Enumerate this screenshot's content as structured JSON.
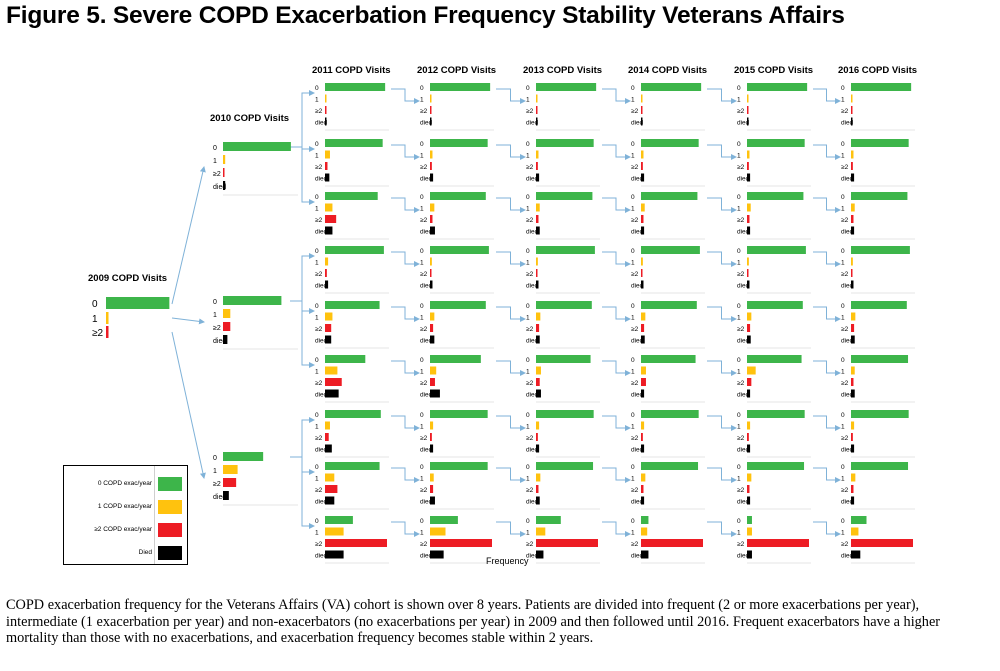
{
  "title": "Figure 5. Severe COPD Exacerbation Frequency Stability Veterans Affairs",
  "caption": "COPD exacerbation frequency for the Veterans Affairs (VA)  cohort is shown over 8 years.  Patients are divided into frequent (2 or more exacerbations per year), intermediate (1 exacerbation per year) and non-exacerbators (no exacerbations per year) in 2009 and then followed until 2016.  Frequent exacerbators have a higher mortality than those with no exacerbations, and exacerbation frequency becomes stable within 2 years.",
  "colors": {
    "zero": "#3db54a",
    "one": "#ffc20e",
    "two": "#ed1c24",
    "died": "#000000",
    "arrow": "#7fb2d8"
  },
  "legend": [
    {
      "label": "0 COPD exac/year",
      "color": "#3db54a"
    },
    {
      "label": "1 COPD exac/year",
      "color": "#ffc20e"
    },
    {
      "label": "≥2 COPD exac/year",
      "color": "#ed1c24"
    },
    {
      "label": "Died",
      "color": "#000000"
    }
  ],
  "chart_data": {
    "type": "bar",
    "orientation": "horizontal",
    "xlabel": "Frequency",
    "categories": [
      "0",
      "1",
      "≥2",
      "died"
    ],
    "year_labels": [
      "2009 COPD Visits",
      "2010 COPD Visits",
      "2011 COPD Visits",
      "2012 COPD Visits",
      "2013 COPD Visits",
      "2014 COPD Visits",
      "2015 COPD Visits",
      "2016 COPD Visits"
    ],
    "root_2009": {
      "categories": [
        "0",
        "1",
        "≥2"
      ],
      "values": [
        0.96,
        0.03,
        0.01
      ]
    },
    "level_2010": [
      {
        "from": "0",
        "values": [
          0.93,
          0.03,
          0.01,
          0.03
        ]
      },
      {
        "from": "1",
        "values": [
          0.8,
          0.1,
          0.1,
          0.06
        ]
      },
      {
        "from": "≥2",
        "values": [
          0.55,
          0.2,
          0.18,
          0.08
        ]
      }
    ],
    "rows": [
      {
        "path": "0 → 0",
        "values": [
          [
            0.97,
            0.01,
            0.01,
            0.02
          ],
          [
            0.97,
            0.01,
            0.01,
            0.02
          ],
          [
            0.97,
            0.01,
            0.01,
            0.02
          ],
          [
            0.97,
            0.01,
            0.01,
            0.02
          ],
          [
            0.97,
            0.01,
            0.01,
            0.02
          ],
          [
            0.97,
            0.01,
            0.01,
            0.02
          ]
        ]
      },
      {
        "path": "0 → 1",
        "values": [
          [
            0.93,
            0.08,
            0.04,
            0.07
          ],
          [
            0.93,
            0.04,
            0.03,
            0.05
          ],
          [
            0.93,
            0.04,
            0.03,
            0.05
          ],
          [
            0.93,
            0.04,
            0.03,
            0.05
          ],
          [
            0.93,
            0.04,
            0.03,
            0.05
          ],
          [
            0.93,
            0.04,
            0.03,
            0.05
          ]
        ]
      },
      {
        "path": "0 → ≥2",
        "values": [
          [
            0.85,
            0.12,
            0.18,
            0.12
          ],
          [
            0.9,
            0.07,
            0.04,
            0.08
          ],
          [
            0.91,
            0.06,
            0.04,
            0.06
          ],
          [
            0.91,
            0.06,
            0.04,
            0.05
          ],
          [
            0.91,
            0.06,
            0.04,
            0.05
          ],
          [
            0.91,
            0.06,
            0.04,
            0.05
          ]
        ]
      },
      {
        "path": "1 → 0",
        "values": [
          [
            0.95,
            0.05,
            0.03,
            0.05
          ],
          [
            0.95,
            0.03,
            0.02,
            0.04
          ],
          [
            0.95,
            0.03,
            0.02,
            0.04
          ],
          [
            0.95,
            0.03,
            0.02,
            0.04
          ],
          [
            0.95,
            0.03,
            0.02,
            0.04
          ],
          [
            0.95,
            0.03,
            0.02,
            0.04
          ]
        ]
      },
      {
        "path": "1 → 1",
        "values": [
          [
            0.88,
            0.12,
            0.1,
            0.1
          ],
          [
            0.9,
            0.07,
            0.05,
            0.07
          ],
          [
            0.9,
            0.07,
            0.05,
            0.06
          ],
          [
            0.9,
            0.07,
            0.05,
            0.06
          ],
          [
            0.9,
            0.07,
            0.05,
            0.06
          ],
          [
            0.9,
            0.07,
            0.05,
            0.06
          ]
        ]
      },
      {
        "path": "1 → ≥2",
        "values": [
          [
            0.65,
            0.2,
            0.27,
            0.22
          ],
          [
            0.82,
            0.1,
            0.08,
            0.16
          ],
          [
            0.88,
            0.08,
            0.06,
            0.08
          ],
          [
            0.88,
            0.08,
            0.08,
            0.05
          ],
          [
            0.88,
            0.14,
            0.07,
            0.05
          ],
          [
            0.92,
            0.06,
            0.04,
            0.06
          ]
        ]
      },
      {
        "path": "≥2 → 0",
        "values": [
          [
            0.9,
            0.08,
            0.06,
            0.11
          ],
          [
            0.93,
            0.05,
            0.03,
            0.05
          ],
          [
            0.93,
            0.05,
            0.03,
            0.05
          ],
          [
            0.93,
            0.05,
            0.03,
            0.05
          ],
          [
            0.93,
            0.05,
            0.03,
            0.05
          ],
          [
            0.93,
            0.05,
            0.03,
            0.05
          ]
        ]
      },
      {
        "path": "≥2 → 1",
        "values": [
          [
            0.88,
            0.15,
            0.2,
            0.15
          ],
          [
            0.93,
            0.06,
            0.05,
            0.08
          ],
          [
            0.92,
            0.07,
            0.04,
            0.06
          ],
          [
            0.92,
            0.07,
            0.04,
            0.05
          ],
          [
            0.92,
            0.07,
            0.04,
            0.05
          ],
          [
            0.92,
            0.07,
            0.04,
            0.05
          ]
        ]
      },
      {
        "path": "≥2 → ≥2",
        "values": [
          [
            0.45,
            0.3,
            1.0,
            0.3
          ],
          [
            0.45,
            0.25,
            1.0,
            0.22
          ],
          [
            0.4,
            0.15,
            1.0,
            0.12
          ],
          [
            0.12,
            0.1,
            1.0,
            0.12
          ],
          [
            0.08,
            0.08,
            1.0,
            0.08
          ],
          [
            0.25,
            0.12,
            1.0,
            0.15
          ]
        ]
      }
    ]
  }
}
